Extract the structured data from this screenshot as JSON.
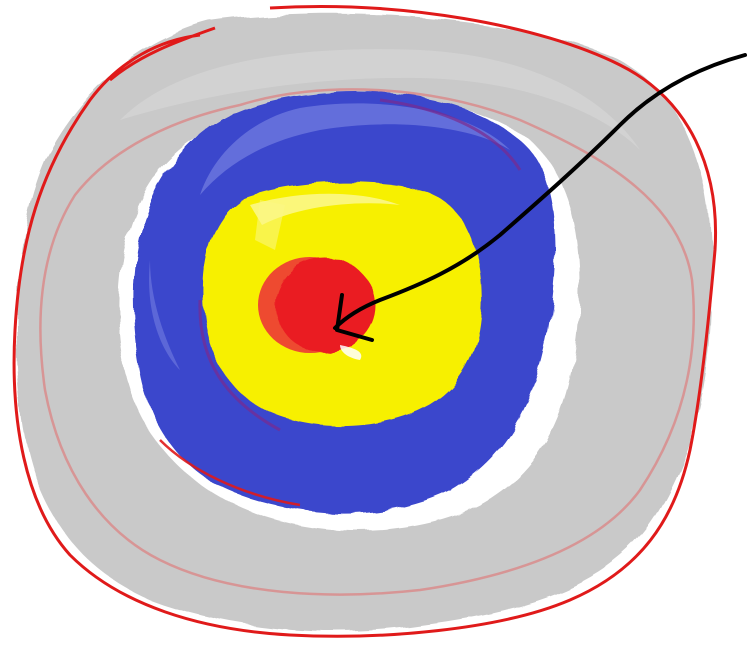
{
  "drawing": {
    "subject": "target-with-arrow",
    "colors": {
      "background": "#ffffff",
      "outer_ring": "#c9c9c9",
      "outer_outline": "#e01a1a",
      "inner_outline": "#d98c8c",
      "blue_ring": "#3b46cc",
      "blue_ring_light": "#6b75dd",
      "ring_edge": "#7a2a8f",
      "yellow_ring": "#f7f000",
      "yellow_light": "#fbf787",
      "bullseye": "#ea1c24",
      "bullseye_shadow": "#ee4a30",
      "arrow": "#000000"
    },
    "icons": [
      "target-icon",
      "arrow-icon"
    ]
  }
}
